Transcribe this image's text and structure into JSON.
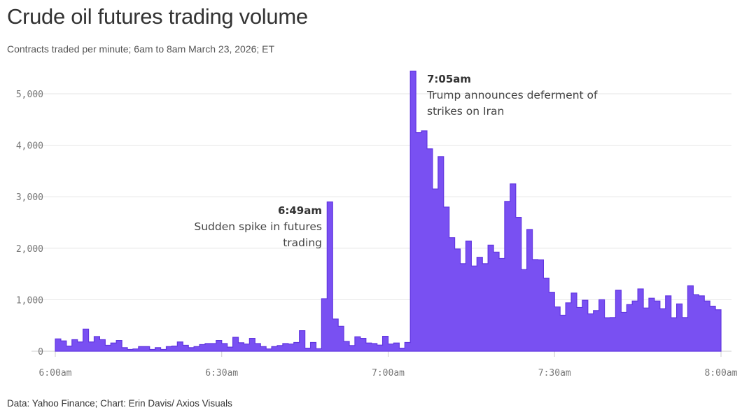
{
  "title": "Crude oil futures trading volume",
  "subtitle": "Contracts traded per minute; 6am to 8am March 23, 2026; ET",
  "footer": "Data: Yahoo Finance; Chart: Erin Davis/ Axios Visuals",
  "chart_data": {
    "type": "area",
    "step": true,
    "title": "Crude oil futures trading volume",
    "xlabel": "",
    "ylabel": "",
    "x_start": "6:00am",
    "x_end": "8:00am",
    "x_interval": "1 minute",
    "x_ticks": [
      "6:00am",
      "6:30am",
      "7:00am",
      "7:30am",
      "8:00am"
    ],
    "y_ticks": [
      "0",
      "1,000",
      "2,000",
      "3,000",
      "4,000",
      "5,000"
    ],
    "y_tick_values": [
      0,
      1000,
      2000,
      3000,
      4000,
      5000
    ],
    "ylim": [
      0,
      5400
    ],
    "grid": true,
    "color": "#7950f2",
    "values": [
      240,
      200,
      100,
      225,
      180,
      430,
      180,
      285,
      225,
      115,
      160,
      210,
      70,
      35,
      45,
      90,
      90,
      35,
      70,
      35,
      90,
      100,
      180,
      115,
      70,
      90,
      130,
      150,
      150,
      210,
      150,
      80,
      270,
      165,
      140,
      250,
      150,
      90,
      45,
      90,
      110,
      150,
      140,
      170,
      400,
      60,
      170,
      50,
      1020,
      2900,
      625,
      485,
      190,
      110,
      280,
      250,
      160,
      150,
      120,
      290,
      140,
      160,
      60,
      170,
      5440,
      4245,
      4280,
      3930,
      3150,
      3780,
      2800,
      2205,
      1985,
      1700,
      2140,
      1655,
      1825,
      1700,
      2060,
      1925,
      1800,
      2910,
      3250,
      2600,
      1585,
      2365,
      1780,
      1775,
      1420,
      1145,
      860,
      700,
      940,
      1130,
      850,
      990,
      725,
      790,
      1000,
      650,
      655,
      1185,
      755,
      905,
      975,
      1210,
      840,
      1030,
      975,
      825,
      1075,
      650,
      920,
      655,
      1270,
      1100,
      1075,
      975,
      875,
      805
    ],
    "annotations": [
      {
        "time": "6:49am",
        "lines": [
          "Sudden spike in futures",
          "trading"
        ]
      },
      {
        "time": "7:05am",
        "lines": [
          "Trump announces deferment of",
          "strikes on Iran"
        ]
      }
    ]
  }
}
